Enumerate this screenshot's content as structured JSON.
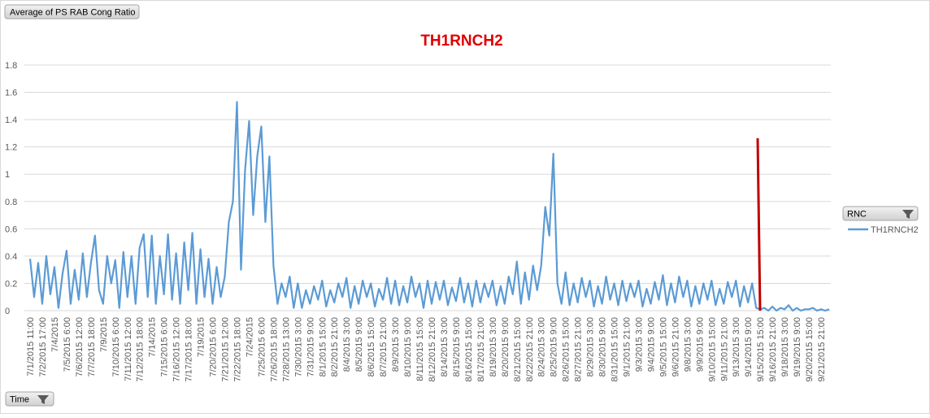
{
  "chart_data": {
    "type": "line",
    "title": "TH1RNCH2",
    "value_field": "Average of PS RAB Cong Ratio",
    "axis_field": "Time",
    "legend_field": "RNC",
    "categories": [
      "7/1/2015 11:00",
      null,
      null,
      "7/2/2015 17:00",
      null,
      null,
      "7/4/2015",
      null,
      null,
      "7/5/2015 6:00",
      null,
      null,
      "7/6/2015 12:00",
      null,
      null,
      "7/7/2015 18:00",
      null,
      null,
      "7/9/2015",
      null,
      null,
      "7/10/2015 6:00",
      null,
      null,
      "7/11/2015 12:00",
      null,
      null,
      "7/12/2015 18:00",
      null,
      null,
      "7/14/2015",
      null,
      null,
      "7/15/2015 6:00",
      null,
      null,
      "7/16/2015 12:00",
      null,
      null,
      "7/17/2015 18:00",
      null,
      null,
      "7/19/2015",
      null,
      null,
      "7/20/2015 6:00",
      null,
      null,
      "7/21/2015 12:00",
      null,
      null,
      "7/22/2015 18:00",
      null,
      null,
      "7/24/2015",
      null,
      null,
      "7/25/2015 6:00",
      null,
      null,
      "7/26/2015 18:00",
      null,
      null,
      "7/28/2015 13:00",
      null,
      null,
      "7/30/2015 3:00",
      null,
      null,
      "7/31/2015 9:00",
      null,
      null,
      "8/1/2015 15:00",
      null,
      null,
      "8/2/2015 21:00",
      null,
      null,
      "8/4/2015 3:00",
      null,
      null,
      "8/5/2015 9:00",
      null,
      null,
      "8/6/2015 15:00",
      null,
      null,
      "8/7/2015 21:00",
      null,
      null,
      "8/9/2015 3:00",
      null,
      null,
      "8/10/2015 9:00",
      null,
      null,
      "8/11/2015 15:00",
      null,
      null,
      "8/12/2015 21:00",
      null,
      null,
      "8/14/2015 3:00",
      null,
      null,
      "8/15/2015 9:00",
      null,
      null,
      "8/16/2015 15:00",
      null,
      null,
      "8/17/2015 21:00",
      null,
      null,
      "8/19/2015 3:00",
      null,
      null,
      "8/20/2015 9:00",
      null,
      null,
      "8/21/2015 15:00",
      null,
      null,
      "8/22/2015 21:00",
      null,
      null,
      "8/24/2015 3:00",
      null,
      null,
      "8/25/2015 9:00",
      null,
      null,
      "8/26/2015 15:00",
      null,
      null,
      "8/27/2015 21:00",
      null,
      null,
      "8/29/2015 3:00",
      null,
      null,
      "8/30/2015 9:00",
      null,
      null,
      "8/31/2015 15:00",
      null,
      null,
      "9/1/2015 21:00",
      null,
      null,
      "9/3/2015 3:00",
      null,
      null,
      "9/4/2015 9:00",
      null,
      null,
      "9/5/2015 15:00",
      null,
      null,
      "9/6/2015 21:00",
      null,
      null,
      "9/8/2015 3:00",
      null,
      null,
      "9/9/2015 9:00",
      null,
      null,
      "9/10/2015 15:00",
      null,
      null,
      "9/11/2015 21:00",
      null,
      null,
      "9/13/2015 3:00",
      null,
      null,
      "9/14/2015 9:00",
      null,
      null,
      "9/15/2015 15:00",
      null,
      null,
      "9/16/2015 21:00",
      null,
      null,
      "9/18/2015 3:00",
      null,
      null,
      "9/19/2015 9:00",
      null,
      null,
      "9/20/2015 15:00",
      null,
      null,
      "9/21/2015 21:00",
      null,
      null
    ],
    "series": [
      {
        "name": "TH1RNCH2",
        "color": "#5b9bd5",
        "values": [
          0.38,
          0.1,
          0.35,
          0.05,
          0.4,
          0.12,
          0.32,
          0.02,
          0.27,
          0.44,
          0.05,
          0.3,
          0.08,
          0.42,
          0.1,
          0.35,
          0.55,
          0.15,
          0.05,
          0.4,
          0.2,
          0.37,
          0.02,
          0.43,
          0.1,
          0.4,
          0.05,
          0.46,
          0.56,
          0.1,
          0.55,
          0.05,
          0.4,
          0.12,
          0.56,
          0.08,
          0.42,
          0.05,
          0.5,
          0.15,
          0.57,
          0.05,
          0.45,
          0.1,
          0.38,
          0.05,
          0.32,
          0.1,
          0.25,
          0.65,
          0.8,
          1.53,
          0.3,
          1.03,
          1.39,
          0.7,
          1.13,
          1.35,
          0.65,
          1.13,
          0.33,
          0.05,
          0.2,
          0.1,
          0.25,
          0.02,
          0.2,
          0.02,
          0.15,
          0.05,
          0.18,
          0.08,
          0.22,
          0.03,
          0.15,
          0.06,
          0.2,
          0.1,
          0.24,
          0.02,
          0.18,
          0.05,
          0.22,
          0.1,
          0.2,
          0.03,
          0.16,
          0.08,
          0.24,
          0.05,
          0.22,
          0.04,
          0.18,
          0.06,
          0.25,
          0.1,
          0.2,
          0.02,
          0.22,
          0.05,
          0.21,
          0.08,
          0.22,
          0.04,
          0.17,
          0.07,
          0.24,
          0.06,
          0.2,
          0.03,
          0.22,
          0.06,
          0.2,
          0.1,
          0.22,
          0.04,
          0.18,
          0.05,
          0.25,
          0.12,
          0.36,
          0.05,
          0.28,
          0.08,
          0.33,
          0.15,
          0.33,
          0.76,
          0.55,
          1.15,
          0.2,
          0.05,
          0.28,
          0.04,
          0.2,
          0.06,
          0.24,
          0.1,
          0.22,
          0.03,
          0.18,
          0.05,
          0.25,
          0.08,
          0.2,
          0.04,
          0.22,
          0.07,
          0.2,
          0.1,
          0.22,
          0.03,
          0.16,
          0.05,
          0.21,
          0.08,
          0.26,
          0.04,
          0.2,
          0.06,
          0.25,
          0.1,
          0.22,
          0.03,
          0.18,
          0.05,
          0.2,
          0.08,
          0.22,
          0.04,
          0.16,
          0.05,
          0.21,
          0.1,
          0.22,
          0.03,
          0.18,
          0.06,
          0.2,
          0.02,
          0.01,
          0.02,
          0,
          0.03,
          0,
          0.02,
          0.01,
          0.04,
          0,
          0.02,
          0,
          0.01,
          0.01,
          0.02,
          0,
          0.01,
          0,
          0.01
        ]
      }
    ],
    "ylim": [
      0,
      1.8
    ],
    "yticks": [
      0,
      0.2,
      0.4,
      0.6,
      0.8,
      1,
      1.2,
      1.4,
      1.6,
      1.8
    ],
    "grid": true,
    "legend": "right"
  }
}
